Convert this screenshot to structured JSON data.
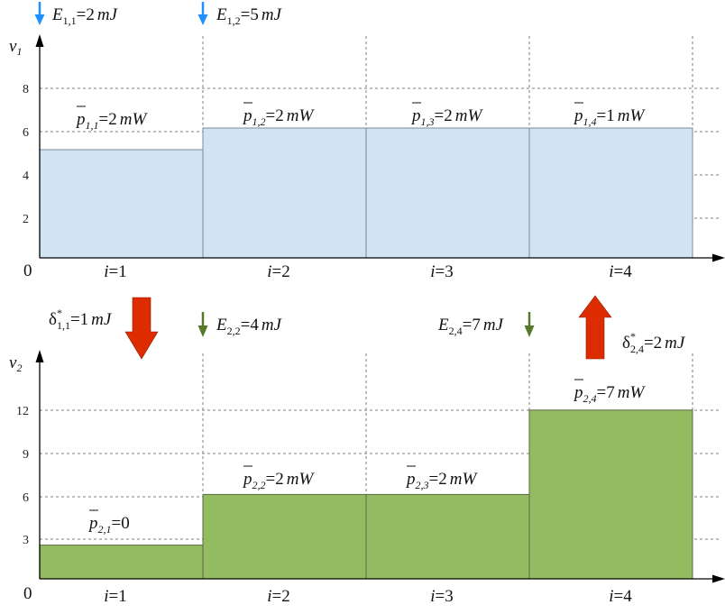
{
  "colors": {
    "top_fill": "#d0e4f2",
    "top_stroke": "#7a8aa0",
    "bottom_fill": "#93bb5f",
    "bottom_stroke": "#5d6a49",
    "arrow_blue": "#1e90ff",
    "arrow_green": "#567a2c",
    "arrow_red": "#dd2c00"
  },
  "top": {
    "ylabel": "v",
    "ylabel_sub": "1",
    "origin": "0",
    "yticks": [
      "2",
      "4",
      "6",
      "8"
    ],
    "xlabels": [
      {
        "i": "i",
        "eq": "=1"
      },
      {
        "i": "i",
        "eq": "=2"
      },
      {
        "i": "i",
        "eq": "=3"
      },
      {
        "i": "i",
        "eq": "=4"
      }
    ],
    "levels": [
      5,
      6,
      6,
      6
    ],
    "powers": [
      {
        "p": "p",
        "sub": "1,1",
        "eq": "=2",
        "unit": "mW"
      },
      {
        "p": "p",
        "sub": "1,2",
        "eq": "=2",
        "unit": "mW"
      },
      {
        "p": "p",
        "sub": "1,3",
        "eq": "=2",
        "unit": "mW"
      },
      {
        "p": "p",
        "sub": "1,4",
        "eq": "=1",
        "unit": "mW"
      }
    ],
    "energies": [
      {
        "E": "E",
        "sub": "1,1",
        "eq": "=2",
        "unit": "mJ"
      },
      {
        "E": "E",
        "sub": "1,2",
        "eq": "=5",
        "unit": "mJ"
      }
    ]
  },
  "bottom": {
    "ylabel": "v",
    "ylabel_sub": "2",
    "origin": "0",
    "yticks": [
      "3",
      "6",
      "9",
      "12"
    ],
    "xlabels": [
      {
        "i": "i",
        "eq": "=1"
      },
      {
        "i": "i",
        "eq": "=2"
      },
      {
        "i": "i",
        "eq": "=3"
      },
      {
        "i": "i",
        "eq": "=4"
      }
    ],
    "levels": [
      2.4,
      6,
      6,
      12
    ],
    "powers": [
      {
        "p": "p",
        "sub": "2,1",
        "eq": "=0",
        "unit": ""
      },
      {
        "p": "p",
        "sub": "2,2",
        "eq": "=2",
        "unit": "mW"
      },
      {
        "p": "p",
        "sub": "2,3",
        "eq": "=2",
        "unit": "mW"
      },
      {
        "p": "p",
        "sub": "2,4",
        "eq": "=7",
        "unit": "mW"
      }
    ],
    "energies": [
      {
        "E": "E",
        "sub": "2,2",
        "eq": "=4",
        "unit": "mJ"
      },
      {
        "E": "E",
        "sub": "2,4",
        "eq": "=7",
        "unit": "mJ"
      }
    ]
  },
  "transfers": [
    {
      "d": "δ",
      "sup": "*",
      "sub": "1,1",
      "eq": "=1",
      "unit": "mJ",
      "direction": "down"
    },
    {
      "d": "δ",
      "sup": "*",
      "sub": "2,4",
      "eq": "=2",
      "unit": "mJ",
      "direction": "up"
    }
  ]
}
